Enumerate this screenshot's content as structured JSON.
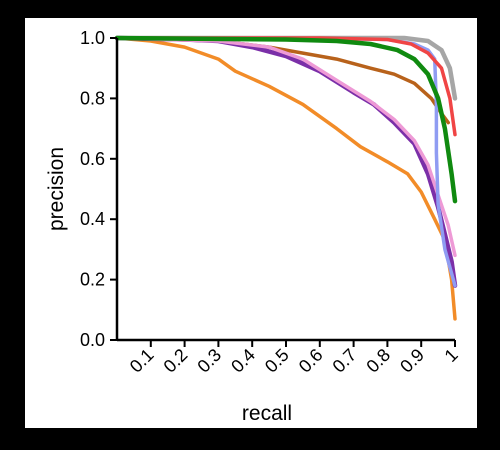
{
  "chart_data": {
    "type": "line",
    "title": "",
    "xlabel": "recall",
    "ylabel": "precision",
    "xlim": [
      0,
      1
    ],
    "ylim": [
      0,
      1
    ],
    "x_ticks": [
      "0.1",
      "0.2",
      "0.3",
      "0.4",
      "0.5",
      "0.6",
      "0.7",
      "0.8",
      "0.9",
      "1"
    ],
    "x_tick_values": [
      0.1,
      0.2,
      0.3,
      0.4,
      0.5,
      0.6,
      0.7,
      0.8,
      0.9,
      1.0
    ],
    "y_ticks": [
      "0.0",
      "0.2",
      "0.4",
      "0.6",
      "0.8",
      "1.0"
    ],
    "y_tick_values": [
      0.0,
      0.2,
      0.4,
      0.6,
      0.8,
      1.0
    ],
    "grid": false,
    "series": [
      {
        "color": "#f28c28",
        "width": 3.5,
        "points": [
          [
            0.0,
            1.0
          ],
          [
            0.1,
            0.99
          ],
          [
            0.2,
            0.97
          ],
          [
            0.3,
            0.93
          ],
          [
            0.35,
            0.89
          ],
          [
            0.45,
            0.84
          ],
          [
            0.55,
            0.78
          ],
          [
            0.65,
            0.7
          ],
          [
            0.72,
            0.64
          ],
          [
            0.8,
            0.59
          ],
          [
            0.86,
            0.55
          ],
          [
            0.9,
            0.49
          ],
          [
            0.94,
            0.4
          ],
          [
            0.97,
            0.33
          ],
          [
            0.99,
            0.2
          ],
          [
            1.0,
            0.07
          ]
        ]
      },
      {
        "color": "#b8621b",
        "width": 3.5,
        "points": [
          [
            0.0,
            1.0
          ],
          [
            0.3,
            0.99
          ],
          [
            0.45,
            0.97
          ],
          [
            0.55,
            0.95
          ],
          [
            0.65,
            0.93
          ],
          [
            0.75,
            0.9
          ],
          [
            0.82,
            0.88
          ],
          [
            0.88,
            0.85
          ],
          [
            0.93,
            0.8
          ],
          [
            0.96,
            0.75
          ],
          [
            0.98,
            0.72
          ]
        ]
      },
      {
        "color": "#7b2fa8",
        "width": 4.5,
        "points": [
          [
            0.0,
            1.0
          ],
          [
            0.2,
            0.995
          ],
          [
            0.3,
            0.99
          ],
          [
            0.4,
            0.97
          ],
          [
            0.5,
            0.94
          ],
          [
            0.6,
            0.89
          ],
          [
            0.7,
            0.82
          ],
          [
            0.76,
            0.78
          ],
          [
            0.82,
            0.72
          ],
          [
            0.88,
            0.65
          ],
          [
            0.92,
            0.55
          ],
          [
            0.95,
            0.44
          ],
          [
            0.97,
            0.35
          ],
          [
            0.99,
            0.26
          ],
          [
            1.0,
            0.18
          ]
        ]
      },
      {
        "color": "#ee9ad6",
        "width": 3.5,
        "points": [
          [
            0.0,
            1.0
          ],
          [
            0.3,
            0.99
          ],
          [
            0.45,
            0.97
          ],
          [
            0.55,
            0.93
          ],
          [
            0.65,
            0.86
          ],
          [
            0.75,
            0.79
          ],
          [
            0.82,
            0.73
          ],
          [
            0.88,
            0.66
          ],
          [
            0.92,
            0.58
          ],
          [
            0.95,
            0.48
          ],
          [
            0.98,
            0.38
          ],
          [
            1.0,
            0.28
          ]
        ]
      },
      {
        "color": "#8f9cf2",
        "width": 3.5,
        "points": [
          [
            0.0,
            1.0
          ],
          [
            0.5,
            1.0
          ],
          [
            0.8,
            0.995
          ],
          [
            0.88,
            0.98
          ],
          [
            0.92,
            0.96
          ],
          [
            0.94,
            0.93
          ],
          [
            0.945,
            0.78
          ],
          [
            0.945,
            0.62
          ],
          [
            0.95,
            0.45
          ],
          [
            0.97,
            0.3
          ],
          [
            1.0,
            0.18
          ]
        ]
      },
      {
        "color": "#a6a6a6",
        "width": 4.5,
        "points": [
          [
            0.0,
            1.0
          ],
          [
            0.6,
            1.0
          ],
          [
            0.85,
            1.0
          ],
          [
            0.92,
            0.99
          ],
          [
            0.96,
            0.96
          ],
          [
            0.985,
            0.9
          ],
          [
            1.0,
            0.8
          ]
        ]
      },
      {
        "color": "#f04545",
        "width": 3.5,
        "points": [
          [
            0.0,
            1.0
          ],
          [
            0.6,
            1.0
          ],
          [
            0.8,
            0.995
          ],
          [
            0.87,
            0.98
          ],
          [
            0.92,
            0.95
          ],
          [
            0.96,
            0.9
          ],
          [
            0.985,
            0.8
          ],
          [
            1.0,
            0.68
          ]
        ]
      },
      {
        "color": "#108a10",
        "width": 4.5,
        "points": [
          [
            0.0,
            1.0
          ],
          [
            0.5,
            0.995
          ],
          [
            0.65,
            0.99
          ],
          [
            0.75,
            0.98
          ],
          [
            0.83,
            0.96
          ],
          [
            0.88,
            0.93
          ],
          [
            0.92,
            0.88
          ],
          [
            0.95,
            0.8
          ],
          [
            0.97,
            0.7
          ],
          [
            0.99,
            0.55
          ],
          [
            1.0,
            0.46
          ]
        ]
      }
    ]
  }
}
